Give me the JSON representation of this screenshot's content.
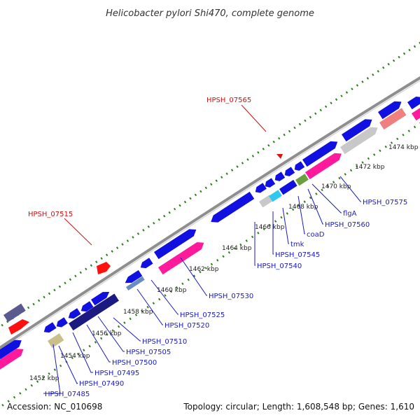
{
  "title": "Helicobacter pylori Shi470, complete genome",
  "footer": {
    "accession": "Accession: NC_010698",
    "summary": "Topology: circular; Length: 1,608,548 bp; Genes: 1,610"
  },
  "colors": {
    "backbone": "#9a9a9a",
    "gc_dots": "#2e7d1e",
    "label_blue": "#1a1ac8",
    "label_red": "#d01010",
    "cds": "#1010e0",
    "rrna_pink": "#ff1a9c",
    "gray_block": "#c8c8c8",
    "salmon": "#f08080",
    "cyan": "#30c8f0",
    "navy": "#1a1a80",
    "olive": "#c8c088",
    "steel": "#6a8cc0",
    "purple_gray": "#5a5a90",
    "green": "#6aa040"
  },
  "ticks": [
    "1452 kbp",
    "1454 kbp",
    "1456 kbp",
    "1458 kbp",
    "1460 kbp",
    "1462 kbp",
    "1464 kbp",
    "1466 kbp",
    "1468 kbp",
    "1470 kbp",
    "1472 kbp",
    "1474 kbp"
  ],
  "gene_labels": [
    "HPSH_07485",
    "HPSH_07490",
    "HPSH_07495",
    "HPSH_07500",
    "HPSH_07505",
    "HPSH_07510",
    "HPSH_07520",
    "HPSH_07525",
    "HPSH_07530",
    "HPSH_07540",
    "HPSH_07545",
    "tmk",
    "coaD",
    "HPSH_07560",
    "flgA",
    "HPSH_07575"
  ],
  "red_labels": [
    "HPSH_07515",
    "HPSH_07565"
  ]
}
